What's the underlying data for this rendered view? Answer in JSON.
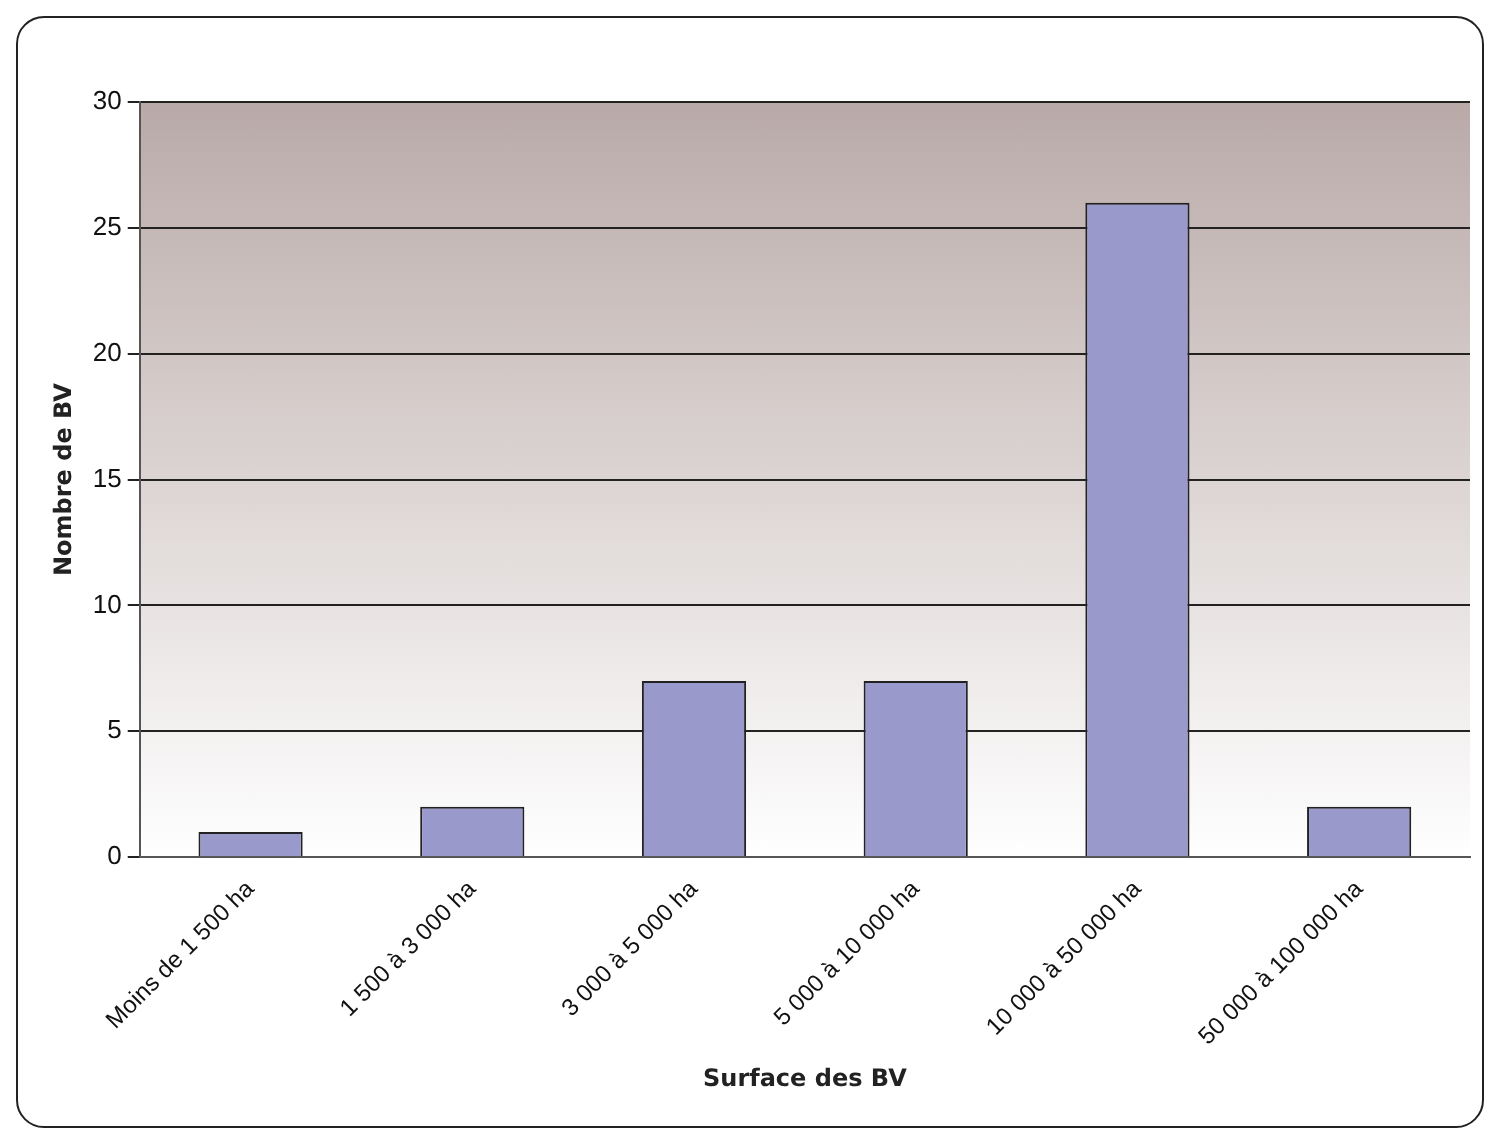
{
  "chart_data": {
    "type": "bar",
    "xlabel": "Surface des BV",
    "ylabel": "Nombre de BV",
    "categories": [
      "Moins de 1 500 ha",
      "1 500 à 3 000 ha",
      "3 000 à 5 000 ha",
      "5 000 à 10 000 ha",
      "10 000 à 50 000 ha",
      "50 000 à 100 000 ha"
    ],
    "values": [
      1,
      2,
      7,
      7,
      26,
      2
    ],
    "color": "#9999cc",
    "ylim": [
      0,
      30
    ],
    "yticks": [
      0,
      5,
      10,
      15,
      20,
      25,
      30
    ],
    "grid": "y",
    "legend": false
  }
}
